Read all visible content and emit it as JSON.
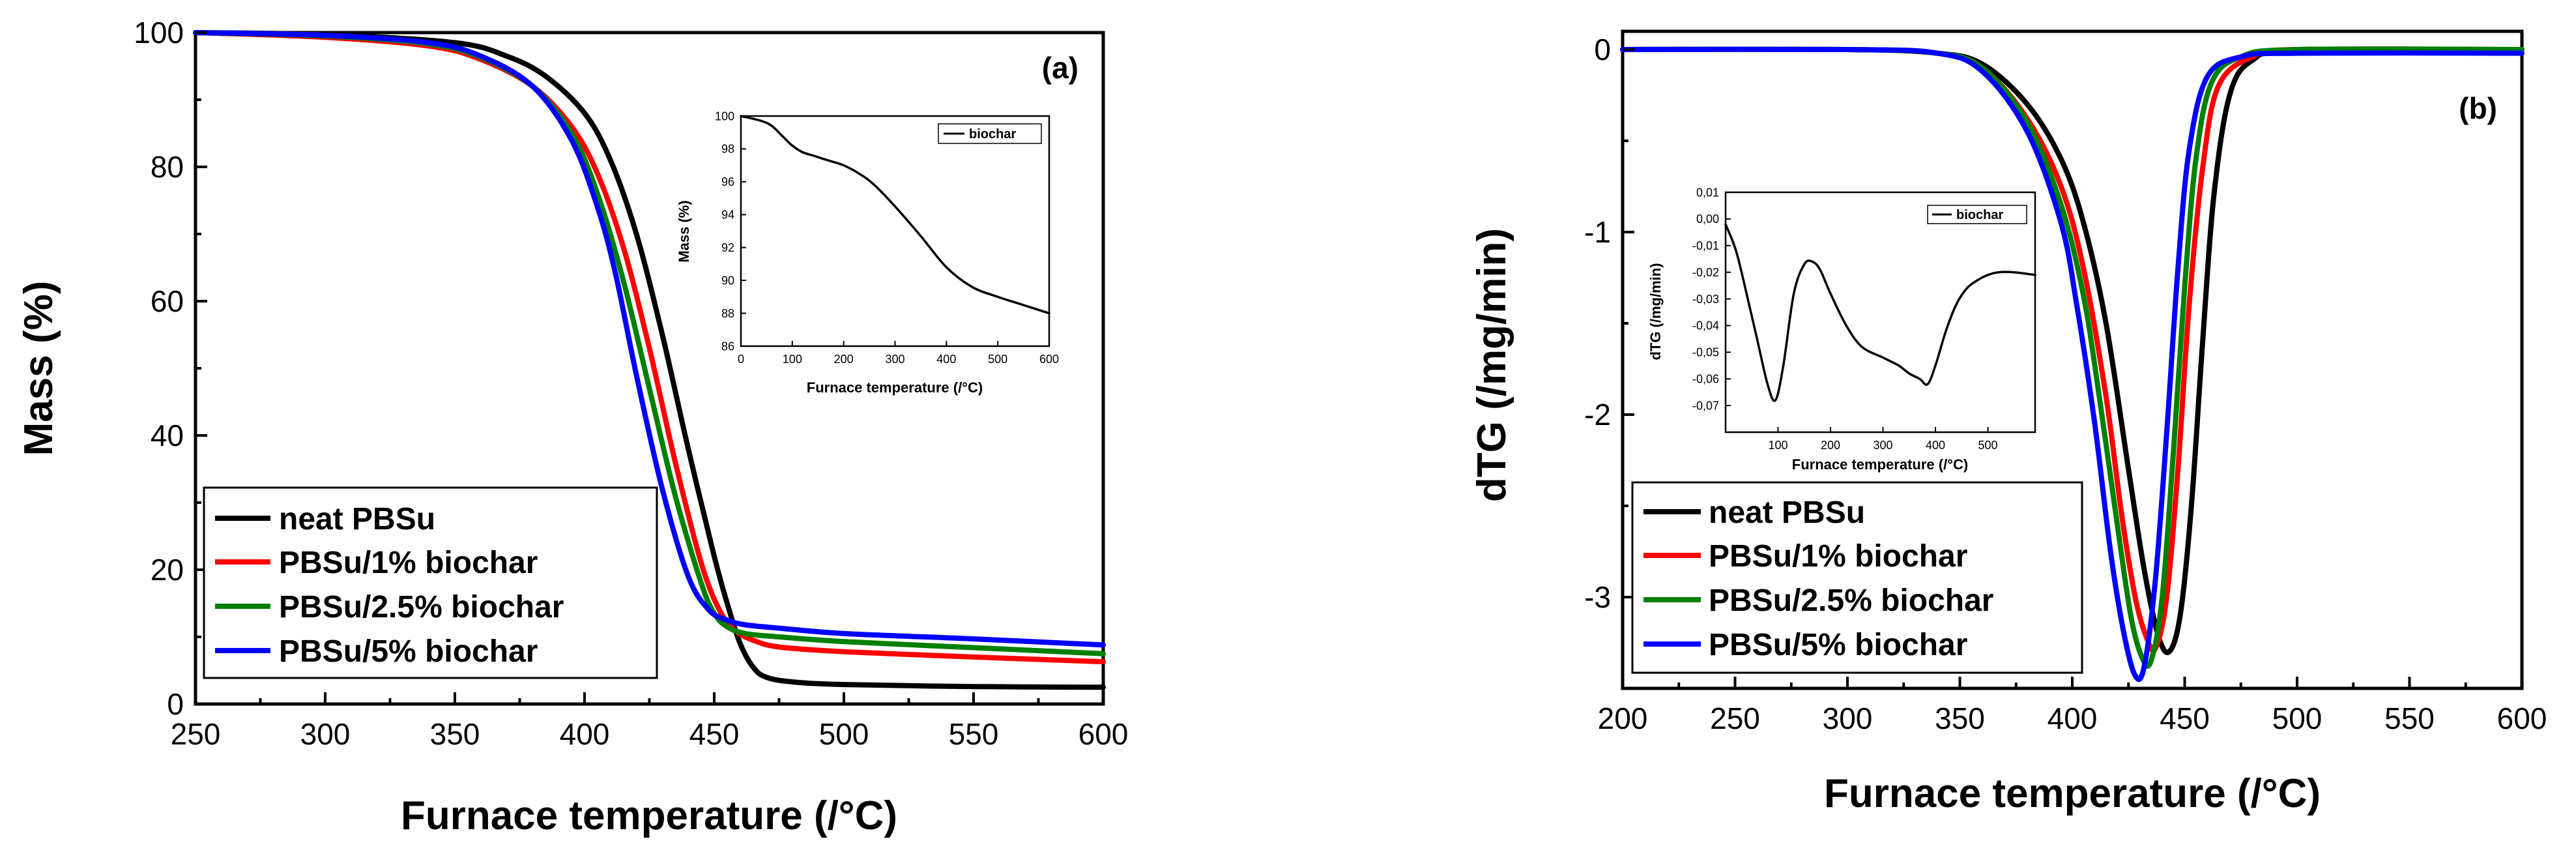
{
  "chart_data": [
    {
      "type": "line",
      "panel": "(a)",
      "xlabel": "Furnace temperature (/°C)",
      "ylabel": "Mass (%)",
      "xlim": [
        250,
        600
      ],
      "ylim": [
        0,
        100
      ],
      "xticks": [
        250,
        300,
        350,
        400,
        450,
        500,
        550,
        600
      ],
      "yticks": [
        0,
        20,
        40,
        60,
        80,
        100
      ],
      "legend_position": "bottom-left",
      "series": [
        {
          "name": "neat PBSu",
          "color": "#000000",
          "x": [
            250,
            300,
            350,
            370,
            385,
            400,
            410,
            420,
            430,
            440,
            450,
            455,
            460,
            465,
            470,
            480,
            500,
            550,
            600
          ],
          "y": [
            100,
            99.7,
            98.5,
            96.5,
            93.5,
            88,
            81,
            70,
            55,
            38,
            22,
            15,
            9,
            5.5,
            4,
            3.3,
            2.9,
            2.6,
            2.5
          ]
        },
        {
          "name": "PBSu/1% biochar",
          "color": "#ff0000",
          "x": [
            250,
            300,
            340,
            360,
            380,
            395,
            405,
            415,
            425,
            435,
            445,
            452,
            458,
            465,
            475,
            500,
            550,
            600
          ],
          "y": [
            100,
            99.3,
            98,
            96,
            92,
            86,
            79,
            68,
            53,
            36,
            21,
            14,
            11,
            9.5,
            8.5,
            7.8,
            7,
            6.3
          ]
        },
        {
          "name": "PBSu/2.5% biochar",
          "color": "#008000",
          "x": [
            250,
            300,
            340,
            360,
            380,
            395,
            405,
            415,
            425,
            435,
            445,
            450,
            455,
            462,
            475,
            500,
            550,
            600
          ],
          "y": [
            100,
            99.5,
            98.3,
            96.3,
            92,
            85,
            76,
            63,
            47,
            31,
            18,
            13.5,
            11.5,
            10.5,
            10,
            9.3,
            8.4,
            7.5
          ]
        },
        {
          "name": "PBSu/5% biochar",
          "color": "#0000ff",
          "x": [
            250,
            300,
            340,
            360,
            380,
            395,
            405,
            412,
            420,
            430,
            440,
            448,
            455,
            462,
            475,
            500,
            550,
            600
          ],
          "y": [
            100,
            99.6,
            98.5,
            96.5,
            92,
            84,
            74,
            64,
            49,
            32,
            19,
            14,
            12.5,
            11.8,
            11.3,
            10.5,
            9.7,
            8.8
          ]
        }
      ],
      "inset": {
        "xlabel": "Furnace temperature (/°C)",
        "ylabel": "Mass (%)",
        "xlim": [
          0,
          600
        ],
        "ylim": [
          86,
          100
        ],
        "xticks": [
          0,
          100,
          200,
          300,
          400,
          500,
          600
        ],
        "yticks": [
          86,
          88,
          90,
          92,
          94,
          96,
          98,
          100
        ],
        "series": [
          {
            "name": "biochar",
            "color": "#000000",
            "x": [
              0,
              40,
              60,
              80,
              100,
              120,
              140,
              170,
              200,
              230,
              260,
              300,
              350,
              400,
              450,
              500,
              550,
              600
            ],
            "y": [
              100,
              99.7,
              99.4,
              98.8,
              98.2,
              97.8,
              97.6,
              97.3,
              97,
              96.5,
              95.8,
              94.5,
              92.7,
              90.8,
              89.6,
              89,
              88.5,
              88
            ]
          }
        ]
      }
    },
    {
      "type": "line",
      "panel": "(b)",
      "xlabel": "Furnace temperature (/°C)",
      "ylabel": "dTG (/mg/min)",
      "xlim": [
        200,
        600
      ],
      "ylim": [
        -3.5,
        0.1
      ],
      "xticks": [
        200,
        250,
        300,
        350,
        400,
        450,
        500,
        550,
        600
      ],
      "yticks": [
        0,
        -1,
        -2,
        -3
      ],
      "legend_position": "bottom-left",
      "series": [
        {
          "name": "neat PBSu",
          "color": "#000000",
          "x": [
            200,
            300,
            340,
            360,
            380,
            395,
            405,
            415,
            425,
            432,
            438,
            443,
            448,
            453,
            458,
            463,
            470,
            480,
            500,
            600
          ],
          "y": [
            0,
            0,
            -0.02,
            -0.08,
            -0.3,
            -0.6,
            -0.95,
            -1.5,
            -2.3,
            -2.85,
            -3.2,
            -3.3,
            -3.1,
            -2.5,
            -1.6,
            -0.8,
            -0.25,
            -0.06,
            -0.01,
            0
          ]
        },
        {
          "name": "PBSu/1% biochar",
          "color": "#ff0000",
          "x": [
            200,
            300,
            340,
            360,
            380,
            395,
            405,
            415,
            422,
            428,
            433,
            437,
            442,
            447,
            452,
            458,
            465,
            480,
            500,
            600
          ],
          "y": [
            0,
            0,
            -0.02,
            -0.1,
            -0.38,
            -0.75,
            -1.2,
            -1.9,
            -2.55,
            -3.0,
            -3.22,
            -3.28,
            -3.0,
            -2.3,
            -1.4,
            -0.65,
            -0.2,
            -0.04,
            0,
            0
          ]
        },
        {
          "name": "PBSu/2.5% biochar",
          "color": "#008000",
          "x": [
            200,
            300,
            340,
            360,
            380,
            395,
            405,
            412,
            420,
            426,
            431,
            435,
            440,
            445,
            450,
            455,
            462,
            475,
            500,
            600
          ],
          "y": [
            0,
            0,
            -0.02,
            -0.1,
            -0.4,
            -0.85,
            -1.35,
            -1.9,
            -2.6,
            -3.1,
            -3.33,
            -3.35,
            -3.0,
            -2.2,
            -1.3,
            -0.6,
            -0.18,
            -0.04,
            0,
            0
          ]
        },
        {
          "name": "PBSu/5% biochar",
          "color": "#0000ff",
          "x": [
            200,
            300,
            340,
            360,
            380,
            395,
            402,
            410,
            417,
            423,
            428,
            432,
            437,
            442,
            447,
            452,
            460,
            475,
            500,
            600
          ],
          "y": [
            0,
            0,
            -0.02,
            -0.12,
            -0.45,
            -0.95,
            -1.4,
            -2.05,
            -2.75,
            -3.2,
            -3.43,
            -3.38,
            -2.9,
            -2.1,
            -1.2,
            -0.55,
            -0.15,
            -0.04,
            -0.02,
            -0.02
          ]
        }
      ],
      "inset": {
        "xlabel": "Furnace temperature (/°C)",
        "ylabel": "dTG (/mg/min)",
        "xlim": [
          0,
          590
        ],
        "ylim": [
          -0.08,
          0.01
        ],
        "xticks": [
          100,
          200,
          300,
          400,
          500
        ],
        "yticks": [
          0.01,
          0.0,
          -0.01,
          -0.02,
          -0.03,
          -0.04,
          -0.05,
          -0.06,
          -0.07
        ],
        "ytick_labels": [
          "0,01",
          "0,00",
          "-0,01",
          "-0,02",
          "-0,03",
          "-0,04",
          "-0,05",
          "-0,06",
          "-0,07"
        ],
        "series": [
          {
            "name": "biochar",
            "color": "#000000",
            "x": [
              0,
              20,
              40,
              60,
              80,
              95,
              110,
              130,
              150,
              165,
              180,
              200,
              230,
              260,
              300,
              330,
              350,
              370,
              385,
              400,
              420,
              440,
              460,
              480,
              500,
              520,
              550,
              590
            ],
            "y": [
              -0.002,
              -0.012,
              -0.028,
              -0.045,
              -0.062,
              -0.068,
              -0.055,
              -0.028,
              -0.017,
              -0.016,
              -0.019,
              -0.028,
              -0.04,
              -0.048,
              -0.052,
              -0.055,
              -0.058,
              -0.06,
              -0.062,
              -0.055,
              -0.042,
              -0.032,
              -0.026,
              -0.023,
              -0.021,
              -0.02,
              -0.02,
              -0.021
            ]
          }
        ]
      }
    }
  ]
}
